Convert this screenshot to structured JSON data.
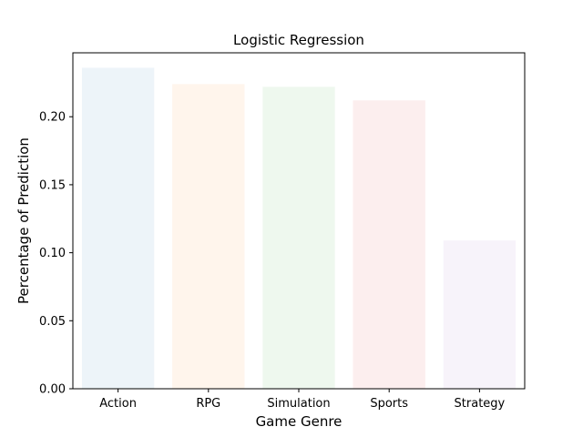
{
  "chart_data": {
    "type": "bar",
    "title": "Logistic Regression",
    "xlabel": "Game Genre",
    "ylabel": "Percentage of Prediction",
    "categories": [
      "Action",
      "RPG",
      "Simulation",
      "Sports",
      "Strategy"
    ],
    "values": [
      0.236,
      0.224,
      0.222,
      0.212,
      0.109
    ],
    "colors": [
      "#1f77b4",
      "#ff7f0e",
      "#2ca02c",
      "#d62728",
      "#9467bd"
    ],
    "bar_opacity": 0.08,
    "ylim": [
      0,
      0.247
    ],
    "yticks": [
      0.0,
      0.05,
      0.1,
      0.15,
      0.2
    ],
    "ytick_labels": [
      "0.00",
      "0.05",
      "0.10",
      "0.15",
      "0.20"
    ],
    "grid": false,
    "legend": "none"
  }
}
